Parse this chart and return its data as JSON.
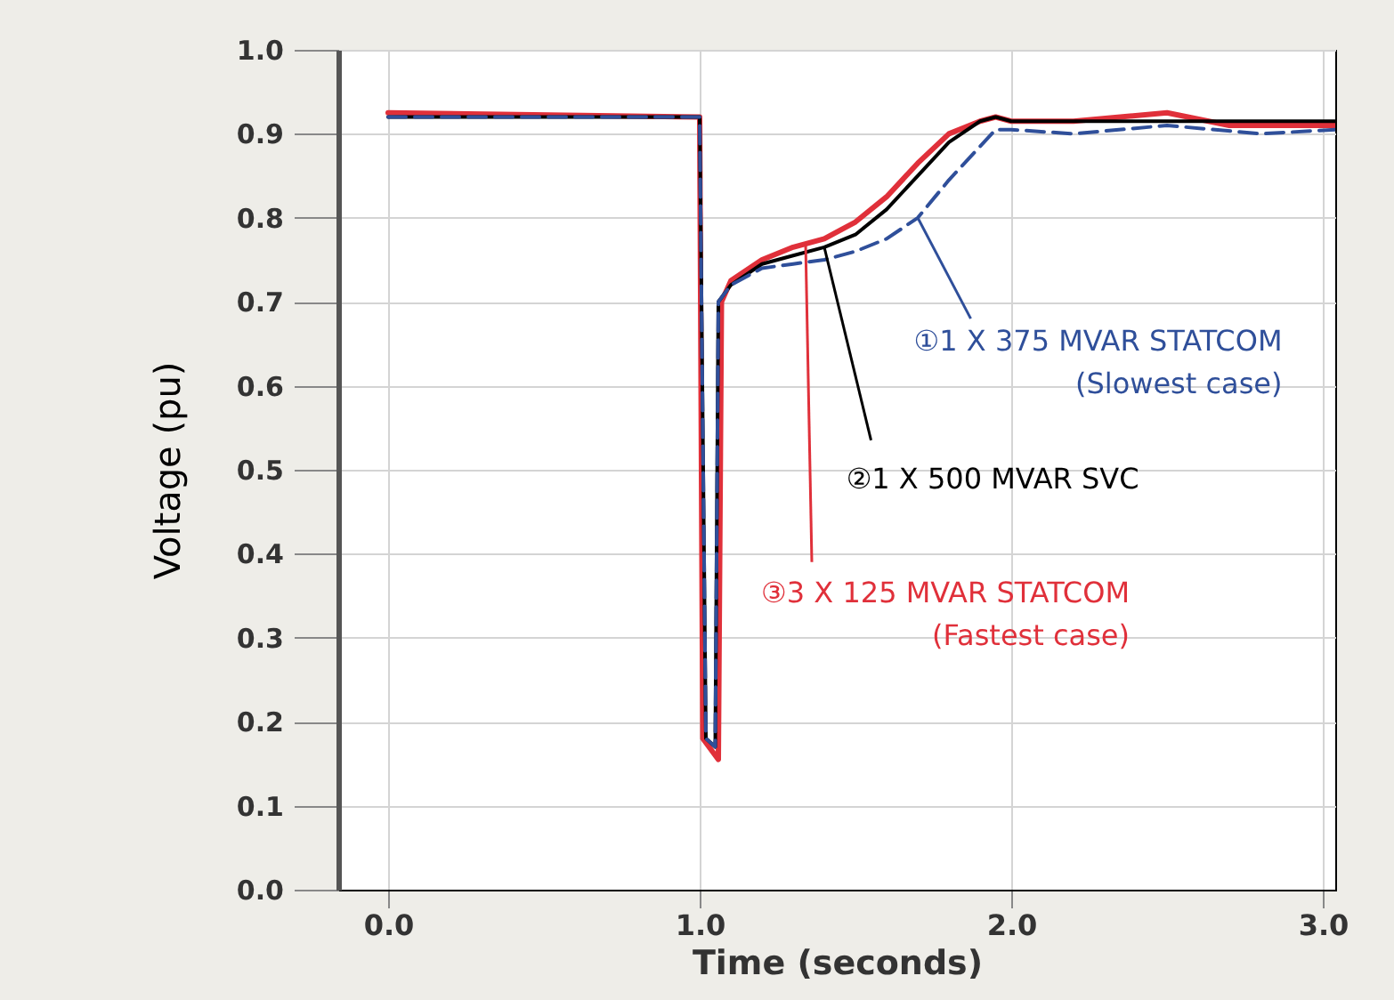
{
  "chart_data": {
    "type": "line",
    "xlabel": "Time (seconds)",
    "ylabel": "Voltage (pu)",
    "xlim": [
      -0.16,
      3.04
    ],
    "xticks": [
      {
        "value": 0,
        "label": "0.0"
      },
      {
        "value": 1,
        "label": "1.0"
      },
      {
        "value": 2,
        "label": "2.0"
      },
      {
        "value": 3,
        "label": "3.0"
      }
    ],
    "ylim": [
      0,
      1.0
    ],
    "yticks": [
      {
        "value": 0,
        "label": "0.0"
      },
      0.1,
      0.2,
      0.3,
      0.4,
      0.5,
      0.6,
      0.7,
      0.8,
      0.9,
      {
        "value": 1,
        "label": "1.0"
      }
    ],
    "grid": true,
    "series": [
      {
        "color": "#2f4f9a",
        "line_style": "dashed",
        "x": [
          0,
          1.0,
          1.02,
          1.05,
          1.06,
          1.1,
          1.2,
          1.3,
          1.4,
          1.5,
          1.6,
          1.7,
          1.8,
          1.9,
          1.95,
          2.0,
          2.2,
          2.5,
          2.8,
          3.04
        ],
        "values": [
          0.92,
          0.92,
          0.18,
          0.17,
          0.7,
          0.72,
          0.74,
          0.745,
          0.75,
          0.76,
          0.775,
          0.8,
          0.845,
          0.885,
          0.905,
          0.905,
          0.9,
          0.91,
          0.9,
          0.905
        ]
      },
      {
        "color": "#000000",
        "line_style": "solid",
        "x": [
          0,
          1.0,
          1.02,
          1.05,
          1.06,
          1.1,
          1.2,
          1.3,
          1.4,
          1.5,
          1.6,
          1.7,
          1.8,
          1.9,
          1.95,
          2.0,
          2.2,
          2.5,
          2.8,
          3.04
        ],
        "values": [
          0.92,
          0.92,
          0.18,
          0.17,
          0.7,
          0.72,
          0.745,
          0.755,
          0.765,
          0.78,
          0.81,
          0.85,
          0.89,
          0.915,
          0.92,
          0.915,
          0.915,
          0.915,
          0.915,
          0.915
        ]
      },
      {
        "color": "#e0303a",
        "line_style": "solid",
        "x": [
          0,
          1.0,
          1.01,
          1.06,
          1.07,
          1.1,
          1.2,
          1.3,
          1.4,
          1.5,
          1.6,
          1.7,
          1.8,
          1.9,
          1.95,
          2.0,
          2.2,
          2.5,
          2.7,
          3.04
        ],
        "values": [
          0.925,
          0.92,
          0.18,
          0.155,
          0.7,
          0.725,
          0.75,
          0.765,
          0.775,
          0.795,
          0.825,
          0.865,
          0.9,
          0.915,
          0.92,
          0.915,
          0.915,
          0.925,
          0.91,
          0.91
        ]
      }
    ],
    "annotations": [
      {
        "text": "①1 X 375 MVAR STATCOM\n(Slowest case)",
        "x": 1.7,
        "y": 0.8
      },
      {
        "text": "②1 X 500 MVAR SVC",
        "x": 1.4,
        "y": 0.765
      },
      {
        "text": "③3 X 125 MVAR STATCOM\n(Fastest case)",
        "x": 1.34,
        "y": 0.77
      }
    ]
  }
}
